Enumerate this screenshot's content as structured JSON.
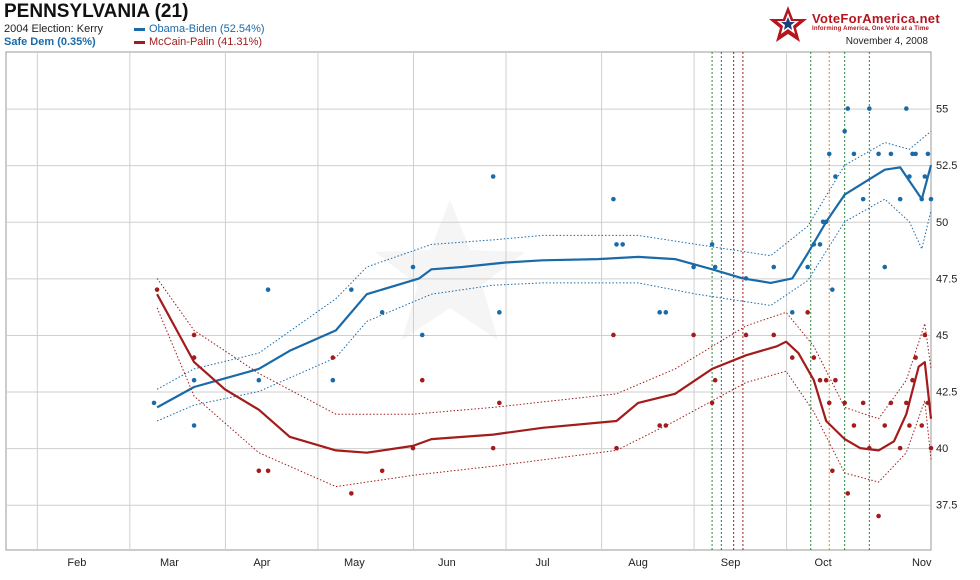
{
  "header": {
    "title": "PENNSYLVANIA (21)",
    "prev_election": "2004 Election: Kerry",
    "status": "Safe Dem (0.35%)",
    "legend_dem": "Obama-Biden (52.54%)",
    "legend_rep": "McCain-Palin (41.31%)",
    "brand": "VoteForAmerica.net",
    "tagline": "Informing America, One Vote at a Time",
    "date": "November 4, 2008"
  },
  "colors": {
    "dem": "#1a6aa8",
    "rep": "#a31b1b",
    "grid": "#c8c8c8",
    "brand": "#b5151d"
  },
  "chart_data": {
    "type": "line",
    "x_ticks": [
      "Feb",
      "Mar",
      "Apr",
      "May",
      "Jun",
      "Jul",
      "Aug",
      "Sep",
      "Oct",
      "Nov"
    ],
    "y_ticks": [
      "37.5",
      "40",
      "42.5",
      "45",
      "47.5",
      "50",
      "52.5",
      "55"
    ],
    "ylim": [
      35.5,
      57.5
    ],
    "xlim": [
      "2008-01-09",
      "2008-11-04"
    ],
    "grid": true,
    "series": [
      {
        "name": "Obama-Biden",
        "color": "#1a6aa8",
        "trend": [
          [
            "2008-02-27",
            41.8
          ],
          [
            "2008-03-10",
            42.7
          ],
          [
            "2008-03-31",
            43.5
          ],
          [
            "2008-04-10",
            44.3
          ],
          [
            "2008-04-25",
            45.2
          ],
          [
            "2008-05-05",
            46.8
          ],
          [
            "2008-05-22",
            47.5
          ],
          [
            "2008-05-26",
            47.9
          ],
          [
            "2008-06-05",
            48.0
          ],
          [
            "2008-06-19",
            48.2
          ],
          [
            "2008-07-01",
            48.3
          ],
          [
            "2008-07-19",
            48.35
          ],
          [
            "2008-08-01",
            48.45
          ],
          [
            "2008-08-13",
            48.35
          ],
          [
            "2008-08-25",
            47.9
          ],
          [
            "2008-09-04",
            47.5
          ],
          [
            "2008-09-13",
            47.3
          ],
          [
            "2008-09-20",
            47.5
          ],
          [
            "2008-09-25",
            48.6
          ],
          [
            "2008-10-01",
            50.0
          ],
          [
            "2008-10-07",
            51.2
          ],
          [
            "2008-10-20",
            52.3
          ],
          [
            "2008-10-25",
            52.4
          ],
          [
            "2008-10-28",
            51.8
          ],
          [
            "2008-11-01",
            51.0
          ],
          [
            "2008-11-04",
            52.5
          ]
        ],
        "upper": [
          [
            "2008-02-27",
            42.6
          ],
          [
            "2008-03-10",
            43.5
          ],
          [
            "2008-03-31",
            44.2
          ],
          [
            "2008-04-25",
            46.6
          ],
          [
            "2008-05-05",
            48.0
          ],
          [
            "2008-05-26",
            49.0
          ],
          [
            "2008-06-15",
            49.2
          ],
          [
            "2008-07-01",
            49.4
          ],
          [
            "2008-08-01",
            49.4
          ],
          [
            "2008-08-20",
            49.0
          ],
          [
            "2008-09-13",
            48.5
          ],
          [
            "2008-09-25",
            49.8
          ],
          [
            "2008-10-07",
            52.5
          ],
          [
            "2008-10-20",
            53.5
          ],
          [
            "2008-10-28",
            53.2
          ],
          [
            "2008-11-04",
            54.0
          ]
        ],
        "lower": [
          [
            "2008-02-27",
            41.2
          ],
          [
            "2008-03-10",
            41.9
          ],
          [
            "2008-03-31",
            42.5
          ],
          [
            "2008-04-25",
            44.0
          ],
          [
            "2008-05-05",
            45.6
          ],
          [
            "2008-05-26",
            46.8
          ],
          [
            "2008-06-15",
            47.2
          ],
          [
            "2008-07-01",
            47.3
          ],
          [
            "2008-08-01",
            47.3
          ],
          [
            "2008-08-20",
            46.8
          ],
          [
            "2008-09-13",
            46.3
          ],
          [
            "2008-09-25",
            47.4
          ],
          [
            "2008-10-07",
            50.0
          ],
          [
            "2008-10-20",
            51.0
          ],
          [
            "2008-10-28",
            50.0
          ],
          [
            "2008-11-01",
            48.8
          ],
          [
            "2008-11-04",
            50.5
          ]
        ],
        "polls": [
          [
            "2008-02-26",
            42
          ],
          [
            "2008-03-10",
            43
          ],
          [
            "2008-03-10",
            41
          ],
          [
            "2008-03-31",
            43
          ],
          [
            "2008-04-03",
            47
          ],
          [
            "2008-04-24",
            43
          ],
          [
            "2008-04-30",
            47
          ],
          [
            "2008-05-10",
            46
          ],
          [
            "2008-05-20",
            48
          ],
          [
            "2008-05-23",
            45
          ],
          [
            "2008-06-15",
            52
          ],
          [
            "2008-06-17",
            46
          ],
          [
            "2008-07-24",
            51
          ],
          [
            "2008-07-25",
            49
          ],
          [
            "2008-07-27",
            49
          ],
          [
            "2008-08-08",
            46
          ],
          [
            "2008-08-10",
            46
          ],
          [
            "2008-08-19",
            48
          ],
          [
            "2008-08-25",
            49
          ],
          [
            "2008-08-26",
            48
          ],
          [
            "2008-09-05",
            47.5
          ],
          [
            "2008-09-14",
            48
          ],
          [
            "2008-09-20",
            46
          ],
          [
            "2008-09-25",
            48
          ],
          [
            "2008-09-27",
            49
          ],
          [
            "2008-09-29",
            49
          ],
          [
            "2008-09-30",
            50
          ],
          [
            "2008-10-01",
            50
          ],
          [
            "2008-10-02",
            53
          ],
          [
            "2008-10-03",
            47
          ],
          [
            "2008-10-04",
            52
          ],
          [
            "2008-10-07",
            54
          ],
          [
            "2008-10-08",
            55
          ],
          [
            "2008-10-10",
            53
          ],
          [
            "2008-10-13",
            51
          ],
          [
            "2008-10-15",
            55
          ],
          [
            "2008-10-18",
            53
          ],
          [
            "2008-10-20",
            48
          ],
          [
            "2008-10-22",
            53
          ],
          [
            "2008-10-25",
            51
          ],
          [
            "2008-10-27",
            55
          ],
          [
            "2008-10-28",
            52
          ],
          [
            "2008-10-29",
            53
          ],
          [
            "2008-10-30",
            53
          ],
          [
            "2008-11-01",
            51
          ],
          [
            "2008-11-02",
            52
          ],
          [
            "2008-11-03",
            53
          ],
          [
            "2008-11-04",
            51
          ]
        ]
      },
      {
        "name": "McCain-Palin",
        "color": "#a31b1b",
        "trend": [
          [
            "2008-02-27",
            46.8
          ],
          [
            "2008-03-10",
            43.8
          ],
          [
            "2008-03-20",
            42.6
          ],
          [
            "2008-03-31",
            41.7
          ],
          [
            "2008-04-10",
            40.5
          ],
          [
            "2008-04-25",
            39.9
          ],
          [
            "2008-05-05",
            39.8
          ],
          [
            "2008-05-20",
            40.1
          ],
          [
            "2008-05-26",
            40.4
          ],
          [
            "2008-06-15",
            40.6
          ],
          [
            "2008-07-01",
            40.9
          ],
          [
            "2008-07-25",
            41.2
          ],
          [
            "2008-08-01",
            42.0
          ],
          [
            "2008-08-13",
            42.4
          ],
          [
            "2008-08-25",
            43.5
          ],
          [
            "2008-09-05",
            44.1
          ],
          [
            "2008-09-15",
            44.5
          ],
          [
            "2008-09-18",
            44.7
          ],
          [
            "2008-09-22",
            44.2
          ],
          [
            "2008-09-27",
            43.0
          ],
          [
            "2008-10-01",
            41.2
          ],
          [
            "2008-10-07",
            40.4
          ],
          [
            "2008-10-12",
            40.0
          ],
          [
            "2008-10-18",
            39.9
          ],
          [
            "2008-10-23",
            40.3
          ],
          [
            "2008-10-27",
            41.5
          ],
          [
            "2008-10-31",
            43.6
          ],
          [
            "2008-11-02",
            43.8
          ],
          [
            "2008-11-04",
            41.3
          ]
        ],
        "upper": [
          [
            "2008-02-27",
            47.5
          ],
          [
            "2008-03-10",
            45.2
          ],
          [
            "2008-03-31",
            43.3
          ],
          [
            "2008-04-25",
            41.5
          ],
          [
            "2008-05-20",
            41.5
          ],
          [
            "2008-06-15",
            41.8
          ],
          [
            "2008-07-25",
            42.4
          ],
          [
            "2008-08-13",
            43.5
          ],
          [
            "2008-09-05",
            45.4
          ],
          [
            "2008-09-18",
            46.0
          ],
          [
            "2008-09-27",
            44.5
          ],
          [
            "2008-10-07",
            41.8
          ],
          [
            "2008-10-18",
            41.3
          ],
          [
            "2008-10-27",
            43.0
          ],
          [
            "2008-11-02",
            45.5
          ],
          [
            "2008-11-04",
            43.5
          ]
        ],
        "lower": [
          [
            "2008-02-27",
            46.2
          ],
          [
            "2008-03-10",
            42.3
          ],
          [
            "2008-03-31",
            39.8
          ],
          [
            "2008-04-25",
            38.3
          ],
          [
            "2008-05-20",
            38.8
          ],
          [
            "2008-06-15",
            39.2
          ],
          [
            "2008-07-25",
            39.9
          ],
          [
            "2008-08-13",
            41.2
          ],
          [
            "2008-09-05",
            42.9
          ],
          [
            "2008-09-18",
            43.4
          ],
          [
            "2008-09-27",
            41.6
          ],
          [
            "2008-10-07",
            38.9
          ],
          [
            "2008-10-18",
            38.5
          ],
          [
            "2008-10-27",
            39.8
          ],
          [
            "2008-11-02",
            42.1
          ],
          [
            "2008-11-04",
            39.5
          ]
        ],
        "polls": [
          [
            "2008-02-27",
            47
          ],
          [
            "2008-03-10",
            45
          ],
          [
            "2008-03-10",
            44
          ],
          [
            "2008-03-31",
            39
          ],
          [
            "2008-04-03",
            39
          ],
          [
            "2008-04-24",
            44
          ],
          [
            "2008-04-30",
            38
          ],
          [
            "2008-05-10",
            39
          ],
          [
            "2008-05-20",
            40
          ],
          [
            "2008-05-23",
            43
          ],
          [
            "2008-06-15",
            40
          ],
          [
            "2008-06-17",
            42
          ],
          [
            "2008-07-24",
            45
          ],
          [
            "2008-07-25",
            40
          ],
          [
            "2008-08-08",
            41
          ],
          [
            "2008-08-10",
            41
          ],
          [
            "2008-08-19",
            45
          ],
          [
            "2008-08-25",
            42
          ],
          [
            "2008-08-26",
            43
          ],
          [
            "2008-09-05",
            45
          ],
          [
            "2008-09-14",
            45
          ],
          [
            "2008-09-20",
            44
          ],
          [
            "2008-09-25",
            46
          ],
          [
            "2008-09-27",
            44
          ],
          [
            "2008-09-29",
            43
          ],
          [
            "2008-10-01",
            43
          ],
          [
            "2008-10-02",
            42
          ],
          [
            "2008-10-03",
            39
          ],
          [
            "2008-10-04",
            43
          ],
          [
            "2008-10-07",
            42
          ],
          [
            "2008-10-08",
            38
          ],
          [
            "2008-10-10",
            41
          ],
          [
            "2008-10-13",
            42
          ],
          [
            "2008-10-15",
            40
          ],
          [
            "2008-10-18",
            37
          ],
          [
            "2008-10-20",
            41
          ],
          [
            "2008-10-22",
            42
          ],
          [
            "2008-10-25",
            40
          ],
          [
            "2008-10-27",
            42
          ],
          [
            "2008-10-28",
            41
          ],
          [
            "2008-10-29",
            43
          ],
          [
            "2008-10-30",
            44
          ],
          [
            "2008-11-01",
            41
          ],
          [
            "2008-11-02",
            45
          ],
          [
            "2008-11-03",
            42
          ],
          [
            "2008-11-04",
            40
          ]
        ]
      }
    ],
    "event_lines": [
      {
        "date": "2008-08-25",
        "color": "#2b8a3a"
      },
      {
        "date": "2008-08-28",
        "color": "#1a6aa8"
      },
      {
        "date": "2008-09-01",
        "color": "#a31b1b"
      },
      {
        "date": "2008-09-04",
        "color": "#a31b1b"
      },
      {
        "date": "2008-09-26",
        "color": "#2b8a3a"
      },
      {
        "date": "2008-10-02",
        "color": "#e08a1a"
      },
      {
        "date": "2008-10-07",
        "color": "#2b8a3a"
      },
      {
        "date": "2008-10-15",
        "color": "#2b8a3a"
      }
    ]
  }
}
